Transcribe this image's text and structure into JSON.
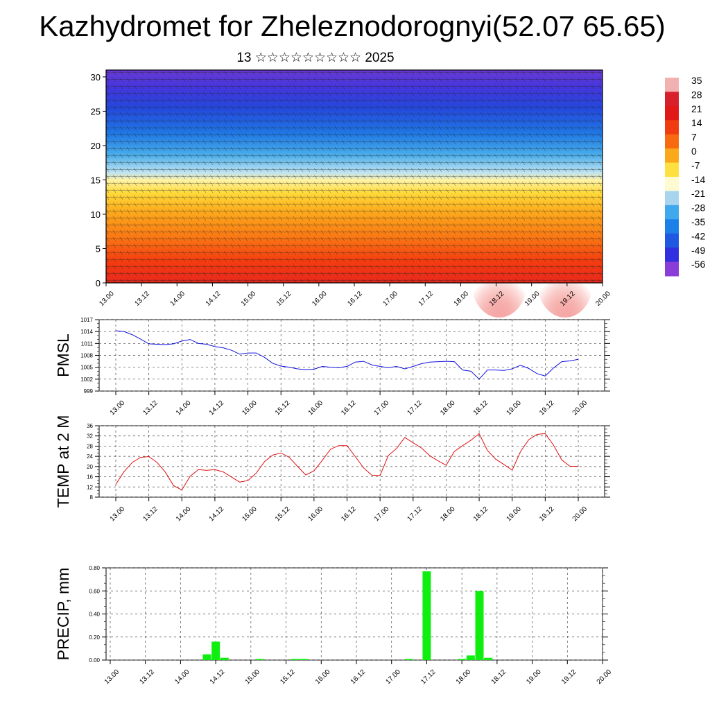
{
  "title": "Kazhydromet for Zheleznodorognyi(52.07 65.65)",
  "subtitle": "13 ☆☆☆☆☆☆☆☆☆ 2025",
  "time_labels": [
    "13.00",
    "13.12",
    "14.00",
    "14.12",
    "15.00",
    "15.12",
    "16.00",
    "16.12",
    "17.00",
    "17.12",
    "18.00",
    "18.12",
    "19.00",
    "19.12",
    "20.00"
  ],
  "chart_data": [
    {
      "type": "heatmap",
      "name": "cross-section",
      "y_ticks": [
        0,
        5,
        10,
        15,
        20,
        25,
        30
      ],
      "ylim": [
        0,
        31
      ],
      "colorbar": {
        "labels": [
          "35",
          "28",
          "21",
          "14",
          "7",
          "0",
          "-7",
          "-14",
          "-21",
          "-28",
          "-35",
          "-42",
          "-49",
          "-56"
        ],
        "colors": [
          "#f2b0b0",
          "#d8202a",
          "#e01818",
          "#f03c10",
          "#f86a10",
          "#fca81c",
          "#ffe040",
          "#fffad0",
          "#a8d4f0",
          "#40a8ec",
          "#1c80e8",
          "#2058e0",
          "#3030e0",
          "#8a3cd8"
        ]
      }
    },
    {
      "type": "line",
      "ylabel": "PMSL",
      "y_ticks": [
        999,
        1002,
        1005,
        1008,
        1011,
        1014,
        1017
      ],
      "ylim": [
        999,
        1017
      ],
      "color": "#1010e0",
      "x": [
        0,
        1,
        2,
        3,
        4,
        5,
        6,
        7,
        8,
        9,
        10,
        11,
        12,
        13,
        14,
        15,
        16,
        17,
        18,
        19,
        20,
        21,
        22,
        23,
        24,
        25,
        26,
        27,
        28,
        29,
        30,
        31,
        32,
        33,
        34,
        35,
        36,
        37,
        38,
        39,
        40,
        41,
        42,
        43,
        44,
        45,
        46,
        47,
        48,
        49,
        50,
        51,
        52,
        53,
        54,
        55,
        56
      ],
      "values": [
        1014.2,
        1014.0,
        1013.2,
        1012.1,
        1010.9,
        1010.8,
        1010.7,
        1010.9,
        1011.6,
        1012.0,
        1011.0,
        1010.8,
        1010.2,
        1009.9,
        1009.3,
        1008.3,
        1008.6,
        1008.6,
        1007.5,
        1006.0,
        1005.3,
        1005.0,
        1004.6,
        1004.4,
        1004.5,
        1005.2,
        1005.0,
        1004.9,
        1005.2,
        1006.3,
        1006.5,
        1005.6,
        1005.2,
        1004.9,
        1005.2,
        1004.6,
        1005.2,
        1005.9,
        1006.3,
        1006.4,
        1006.5,
        1006.4,
        1004.3,
        1004.0,
        1002.0,
        1004.3,
        1004.3,
        1004.2,
        1004.6,
        1005.5,
        1004.7,
        1003.4,
        1002.8,
        1004.8,
        1006.4,
        1006.6,
        1007.0
      ]
    },
    {
      "type": "line",
      "ylabel": "TEMP at 2 M",
      "y_ticks": [
        8,
        12,
        16,
        20,
        24,
        28,
        32,
        36
      ],
      "ylim": [
        8,
        36
      ],
      "color": "#e01010",
      "x": [
        0,
        1,
        2,
        3,
        4,
        5,
        6,
        7,
        8,
        9,
        10,
        11,
        12,
        13,
        14,
        15,
        16,
        17,
        18,
        19,
        20,
        21,
        22,
        23,
        24,
        25,
        26,
        27,
        28,
        29,
        30,
        31,
        32,
        33,
        34,
        35,
        36,
        37,
        38,
        39,
        40,
        41,
        42,
        43,
        44,
        45,
        46,
        47,
        48,
        49,
        50,
        51,
        52,
        53,
        54,
        55,
        56
      ],
      "values": [
        13.0,
        18.0,
        21.6,
        23.6,
        23.9,
        21.6,
        17.8,
        12.5,
        10.8,
        16.2,
        18.8,
        18.5,
        18.8,
        17.9,
        15.9,
        13.9,
        14.5,
        17.4,
        21.9,
        24.5,
        25.3,
        23.6,
        20.1,
        16.7,
        18.3,
        22.4,
        26.8,
        28.2,
        28.2,
        23.9,
        19.5,
        16.6,
        16.5,
        24.3,
        27.1,
        31.4,
        29.3,
        27.3,
        24.3,
        22.3,
        20.5,
        25.9,
        28.2,
        30.3,
        32.9,
        26.3,
        22.9,
        20.8,
        18.6,
        25.8,
        30.5,
        32.6,
        32.9,
        28.4,
        22.6,
        20.1,
        20.1
      ]
    },
    {
      "type": "bar",
      "ylabel": "PRECIP, mm",
      "y_tick_labels": [
        "0.00",
        "0.20",
        "0.40",
        "0.60",
        "0.80"
      ],
      "y_ticks": [
        0,
        0.2,
        0.4,
        0.6,
        0.8
      ],
      "ylim": [
        0,
        0.8
      ],
      "color": "#10ee10",
      "x": [
        11,
        12,
        13,
        17,
        21,
        22,
        34,
        36,
        40,
        41,
        42,
        43
      ],
      "values": [
        0.05,
        0.16,
        0.02,
        0.01,
        0.01,
        0.01,
        0.01,
        0.77,
        0.01,
        0.04,
        0.6,
        0.02
      ]
    }
  ]
}
